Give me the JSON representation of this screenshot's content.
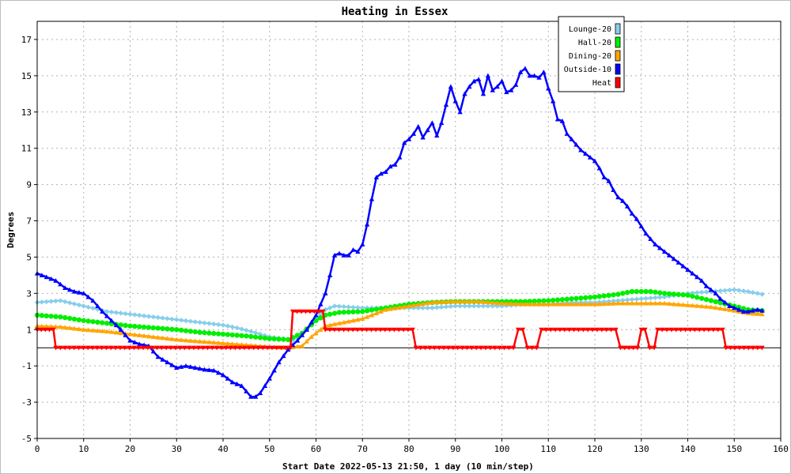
{
  "chart_data": {
    "type": "line",
    "title": "Heating in Essex",
    "xlabel": "Start Date 2022-05-13 21:50, 1 day (10 min/step)",
    "ylabel": "Degrees",
    "xlim": [
      0,
      160
    ],
    "ylim": [
      -5,
      18
    ],
    "xticks": [
      0,
      10,
      20,
      30,
      40,
      50,
      60,
      70,
      80,
      90,
      100,
      110,
      120,
      130,
      140,
      150,
      160
    ],
    "yticks": [
      -5,
      -3,
      -1,
      1,
      3,
      5,
      7,
      9,
      11,
      13,
      15,
      17
    ],
    "grid": true,
    "legend_position": "top-right",
    "zero_line": 0,
    "series": [
      {
        "name": "Lounge-20",
        "color": "#87ceeb",
        "marker": "diamond",
        "points": [
          [
            0,
            2.5
          ],
          [
            5,
            2.6
          ],
          [
            10,
            2.3
          ],
          [
            15,
            2.0
          ],
          [
            20,
            1.85
          ],
          [
            25,
            1.7
          ],
          [
            30,
            1.55
          ],
          [
            35,
            1.4
          ],
          [
            40,
            1.25
          ],
          [
            43,
            1.1
          ],
          [
            46,
            0.9
          ],
          [
            50,
            0.6
          ],
          [
            53,
            0.5
          ],
          [
            55,
            0.4
          ],
          [
            58,
            1.0
          ],
          [
            60,
            1.6
          ],
          [
            62,
            2.1
          ],
          [
            64,
            2.3
          ],
          [
            70,
            2.2
          ],
          [
            75,
            2.2
          ],
          [
            80,
            2.2
          ],
          [
            85,
            2.2
          ],
          [
            90,
            2.3
          ],
          [
            95,
            2.3
          ],
          [
            100,
            2.3
          ],
          [
            105,
            2.4
          ],
          [
            110,
            2.4
          ],
          [
            115,
            2.5
          ],
          [
            120,
            2.5
          ],
          [
            125,
            2.6
          ],
          [
            130,
            2.7
          ],
          [
            135,
            2.8
          ],
          [
            140,
            3.0
          ],
          [
            145,
            3.1
          ],
          [
            150,
            3.2
          ],
          [
            153,
            3.1
          ],
          [
            156,
            2.95
          ]
        ]
      },
      {
        "name": "Hall-20",
        "color": "#00ee00",
        "marker": "circle",
        "points": [
          [
            0,
            1.8
          ],
          [
            5,
            1.7
          ],
          [
            10,
            1.5
          ],
          [
            15,
            1.35
          ],
          [
            20,
            1.2
          ],
          [
            25,
            1.1
          ],
          [
            30,
            1.0
          ],
          [
            35,
            0.85
          ],
          [
            40,
            0.75
          ],
          [
            45,
            0.65
          ],
          [
            50,
            0.5
          ],
          [
            54,
            0.45
          ],
          [
            57,
            0.8
          ],
          [
            60,
            1.5
          ],
          [
            62,
            1.8
          ],
          [
            65,
            1.95
          ],
          [
            70,
            2.0
          ],
          [
            75,
            2.2
          ],
          [
            80,
            2.4
          ],
          [
            85,
            2.5
          ],
          [
            90,
            2.55
          ],
          [
            95,
            2.55
          ],
          [
            100,
            2.55
          ],
          [
            105,
            2.55
          ],
          [
            110,
            2.6
          ],
          [
            115,
            2.7
          ],
          [
            120,
            2.8
          ],
          [
            125,
            2.95
          ],
          [
            128,
            3.1
          ],
          [
            132,
            3.1
          ],
          [
            135,
            3.0
          ],
          [
            140,
            2.9
          ],
          [
            145,
            2.6
          ],
          [
            150,
            2.3
          ],
          [
            153,
            2.1
          ],
          [
            156,
            2.05
          ]
        ]
      },
      {
        "name": "Dining-20",
        "color": "#ffa500",
        "marker": "triangle",
        "points": [
          [
            0,
            1.2
          ],
          [
            5,
            1.15
          ],
          [
            10,
            1.0
          ],
          [
            15,
            0.9
          ],
          [
            20,
            0.75
          ],
          [
            25,
            0.6
          ],
          [
            30,
            0.45
          ],
          [
            35,
            0.35
          ],
          [
            40,
            0.25
          ],
          [
            45,
            0.15
          ],
          [
            50,
            0.05
          ],
          [
            54,
            0.0
          ],
          [
            57,
            0.1
          ],
          [
            59,
            0.6
          ],
          [
            62,
            1.2
          ],
          [
            65,
            1.35
          ],
          [
            70,
            1.6
          ],
          [
            75,
            2.1
          ],
          [
            80,
            2.3
          ],
          [
            85,
            2.5
          ],
          [
            90,
            2.55
          ],
          [
            95,
            2.55
          ],
          [
            100,
            2.45
          ],
          [
            105,
            2.4
          ],
          [
            110,
            2.4
          ],
          [
            115,
            2.4
          ],
          [
            120,
            2.4
          ],
          [
            125,
            2.45
          ],
          [
            130,
            2.45
          ],
          [
            135,
            2.45
          ],
          [
            140,
            2.35
          ],
          [
            145,
            2.25
          ],
          [
            150,
            2.05
          ],
          [
            153,
            1.9
          ],
          [
            156,
            1.85
          ]
        ]
      },
      {
        "name": "Outside-10",
        "color": "#0000ff",
        "marker": "triangle",
        "points": [
          [
            0,
            4.1
          ],
          [
            2,
            3.9
          ],
          [
            4,
            3.7
          ],
          [
            6,
            3.3
          ],
          [
            8,
            3.1
          ],
          [
            10,
            3.0
          ],
          [
            12,
            2.6
          ],
          [
            14,
            2.0
          ],
          [
            16,
            1.5
          ],
          [
            18,
            1.0
          ],
          [
            20,
            0.4
          ],
          [
            22,
            0.2
          ],
          [
            24,
            0.1
          ],
          [
            26,
            -0.5
          ],
          [
            28,
            -0.8
          ],
          [
            30,
            -1.1
          ],
          [
            32,
            -1.0
          ],
          [
            34,
            -1.1
          ],
          [
            36,
            -1.2
          ],
          [
            38,
            -1.25
          ],
          [
            40,
            -1.5
          ],
          [
            42,
            -1.9
          ],
          [
            44,
            -2.1
          ],
          [
            46,
            -2.7
          ],
          [
            47,
            -2.7
          ],
          [
            48,
            -2.5
          ],
          [
            50,
            -1.7
          ],
          [
            52,
            -0.8
          ],
          [
            54,
            -0.1
          ],
          [
            56,
            0.4
          ],
          [
            58,
            1.0
          ],
          [
            60,
            1.8
          ],
          [
            62,
            3.0
          ],
          [
            63,
            4.0
          ],
          [
            64,
            5.1
          ],
          [
            65,
            5.2
          ],
          [
            66,
            5.1
          ],
          [
            67,
            5.1
          ],
          [
            68,
            5.4
          ],
          [
            69,
            5.3
          ],
          [
            70,
            5.7
          ],
          [
            71,
            6.8
          ],
          [
            72,
            8.2
          ],
          [
            73,
            9.4
          ],
          [
            74,
            9.6
          ],
          [
            75,
            9.7
          ],
          [
            76,
            10.0
          ],
          [
            77,
            10.1
          ],
          [
            78,
            10.5
          ],
          [
            79,
            11.3
          ],
          [
            80,
            11.5
          ],
          [
            81,
            11.8
          ],
          [
            82,
            12.2
          ],
          [
            83,
            11.6
          ],
          [
            84,
            12.0
          ],
          [
            85,
            12.4
          ],
          [
            86,
            11.7
          ],
          [
            87,
            12.4
          ],
          [
            88,
            13.4
          ],
          [
            89,
            14.4
          ],
          [
            90,
            13.6
          ],
          [
            91,
            13.0
          ],
          [
            92,
            14.0
          ],
          [
            93,
            14.4
          ],
          [
            94,
            14.7
          ],
          [
            95,
            14.8
          ],
          [
            96,
            14.0
          ],
          [
            97,
            15.0
          ],
          [
            98,
            14.2
          ],
          [
            99,
            14.4
          ],
          [
            100,
            14.7
          ],
          [
            101,
            14.1
          ],
          [
            102,
            14.2
          ],
          [
            103,
            14.5
          ],
          [
            104,
            15.2
          ],
          [
            105,
            15.4
          ],
          [
            106,
            15.0
          ],
          [
            107,
            15.0
          ],
          [
            108,
            14.9
          ],
          [
            109,
            15.2
          ],
          [
            110,
            14.3
          ],
          [
            111,
            13.6
          ],
          [
            112,
            12.6
          ],
          [
            113,
            12.5
          ],
          [
            114,
            11.8
          ],
          [
            115,
            11.5
          ],
          [
            116,
            11.2
          ],
          [
            117,
            10.9
          ],
          [
            118,
            10.7
          ],
          [
            119,
            10.5
          ],
          [
            120,
            10.3
          ],
          [
            121,
            9.9
          ],
          [
            122,
            9.4
          ],
          [
            123,
            9.2
          ],
          [
            124,
            8.7
          ],
          [
            125,
            8.3
          ],
          [
            126,
            8.1
          ],
          [
            127,
            7.8
          ],
          [
            128,
            7.4
          ],
          [
            129,
            7.1
          ],
          [
            130,
            6.7
          ],
          [
            131,
            6.3
          ],
          [
            132,
            6.0
          ],
          [
            133,
            5.7
          ],
          [
            134,
            5.5
          ],
          [
            135,
            5.3
          ],
          [
            136,
            5.1
          ],
          [
            137,
            4.9
          ],
          [
            138,
            4.7
          ],
          [
            139,
            4.5
          ],
          [
            140,
            4.3
          ],
          [
            141,
            4.1
          ],
          [
            142,
            3.9
          ],
          [
            143,
            3.7
          ],
          [
            144,
            3.4
          ],
          [
            145,
            3.2
          ],
          [
            146,
            3.0
          ],
          [
            147,
            2.7
          ],
          [
            148,
            2.5
          ],
          [
            149,
            2.3
          ],
          [
            150,
            2.2
          ],
          [
            151,
            2.1
          ],
          [
            152,
            2.0
          ],
          [
            153,
            2.0
          ],
          [
            154,
            2.05
          ],
          [
            155,
            2.1
          ],
          [
            156,
            2.05
          ]
        ]
      },
      {
        "name": "Heat",
        "color": "#ff0000",
        "marker": "triangle-down",
        "points": [
          [
            0,
            1
          ],
          [
            3.5,
            1
          ],
          [
            4,
            0
          ],
          [
            54.5,
            0
          ],
          [
            55,
            2
          ],
          [
            61.5,
            2
          ],
          [
            62,
            1
          ],
          [
            80.8,
            1
          ],
          [
            81.5,
            0
          ],
          [
            102.5,
            0
          ],
          [
            103.5,
            1
          ],
          [
            104.5,
            1
          ],
          [
            105.5,
            0
          ],
          [
            107.5,
            0
          ],
          [
            108.5,
            1
          ],
          [
            124.5,
            1
          ],
          [
            125.5,
            0
          ],
          [
            129.2,
            0
          ],
          [
            130,
            1
          ],
          [
            130.8,
            1
          ],
          [
            131.8,
            0
          ],
          [
            132.8,
            0
          ],
          [
            133.5,
            1
          ],
          [
            147.5,
            1
          ],
          [
            148.2,
            0
          ],
          [
            156,
            0
          ]
        ]
      }
    ]
  }
}
